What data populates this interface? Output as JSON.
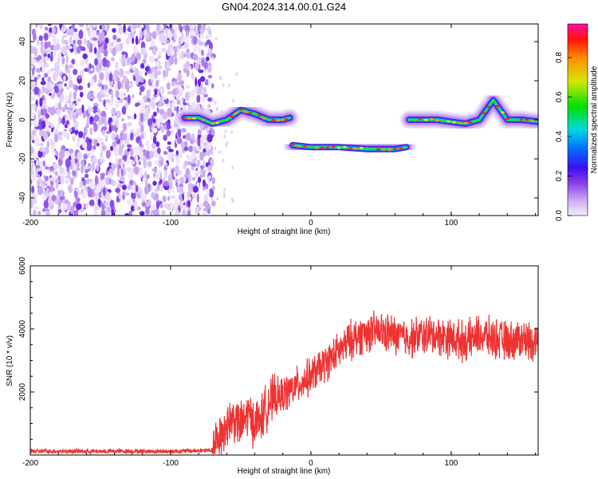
{
  "title": "GN04.2024.314.00.01.G24",
  "chart_data": [
    {
      "type": "heatmap",
      "xlabel": "Height of straight line (km)",
      "ylabel": "Frequency (Hz)",
      "xlim": [
        -200,
        162
      ],
      "ylim": [
        -49,
        49
      ],
      "x_ticks": [
        "-200",
        "-100",
        "0",
        "100"
      ],
      "y_ticks": [
        "40",
        "20",
        "0",
        "-20",
        "-40"
      ],
      "colorbar": {
        "label": "Normalized spectral amplitude",
        "range": [
          0,
          0.97
        ],
        "ticks": [
          "0.0",
          "0.2",
          "0.4",
          "0.6",
          "0.8"
        ],
        "colormap": "rainbow"
      },
      "noise_region": {
        "x": [
          -200,
          -75
        ],
        "amplitude": "low (0.0-0.3)"
      },
      "ridge": [
        {
          "x": -90,
          "y": 1
        },
        {
          "x": -80,
          "y": 1
        },
        {
          "x": -70,
          "y": -2
        },
        {
          "x": -60,
          "y": 0
        },
        {
          "x": -50,
          "y": 5
        },
        {
          "x": -40,
          "y": 3
        },
        {
          "x": -30,
          "y": 0
        },
        {
          "x": -20,
          "y": 0
        },
        {
          "x": -15,
          "y": 1
        },
        {
          "x": -13,
          "y": -13
        },
        {
          "x": 0,
          "y": -14
        },
        {
          "x": 20,
          "y": -14
        },
        {
          "x": 40,
          "y": -15
        },
        {
          "x": 60,
          "y": -15
        },
        {
          "x": 68,
          "y": -14
        },
        {
          "x": 70,
          "y": 0
        },
        {
          "x": 90,
          "y": 0
        },
        {
          "x": 110,
          "y": -2
        },
        {
          "x": 120,
          "y": 0
        },
        {
          "x": 130,
          "y": 10
        },
        {
          "x": 140,
          "y": 0
        },
        {
          "x": 150,
          "y": 0
        },
        {
          "x": 162,
          "y": -1
        }
      ]
    },
    {
      "type": "line",
      "xlabel": "Height of straight line (km)",
      "ylabel": "SNR (10 * v/v)",
      "xlim": [
        -200,
        162
      ],
      "ylim": [
        0,
        6000
      ],
      "x_ticks": [
        "-200",
        "-100",
        "0",
        "100"
      ],
      "y_ticks": [
        "2000",
        "4000",
        "6000"
      ],
      "color": "#ee3333",
      "series": [
        {
          "x": [
            -200,
            -150,
            -100,
            -70,
            -65,
            -60,
            -55,
            -50,
            -45,
            -40,
            -35,
            -30,
            -20,
            -10,
            0,
            10,
            20,
            30,
            40,
            50,
            60,
            70,
            80,
            90,
            100,
            110,
            120,
            130,
            140,
            150,
            162
          ],
          "y": [
            120,
            120,
            120,
            150,
            600,
            1000,
            1200,
            900,
            1300,
            1000,
            1200,
            1700,
            1900,
            2200,
            2500,
            2900,
            3300,
            3700,
            3900,
            3900,
            3800,
            3700,
            3800,
            3800,
            3700,
            3600,
            3800,
            3700,
            3600,
            3700,
            3600
          ]
        }
      ]
    }
  ]
}
